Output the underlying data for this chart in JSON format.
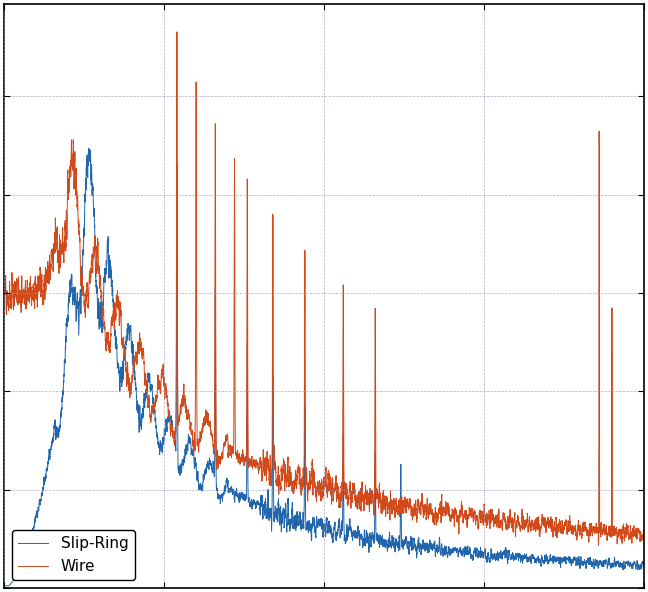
{
  "line1_color": "#2166ac",
  "line2_color": "#d2491a",
  "line1_label": "Slip-Ring",
  "line2_label": "Wire",
  "background_color": "#ffffff",
  "grid_color": "#9999bb",
  "legend_loc": "lower left",
  "linewidth": 0.7,
  "legend_fontsize": 11,
  "tick_labelsize": 0,
  "figsize": [
    6.48,
    5.92
  ],
  "dpi": 100
}
